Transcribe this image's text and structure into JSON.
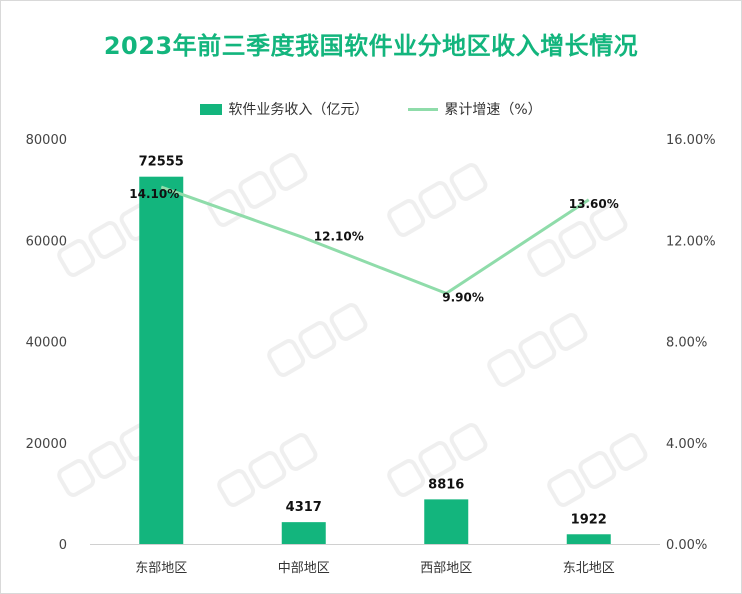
{
  "chart_data": {
    "type": "bar+line",
    "title": "2023年前三季度我国软件业分地区收入增长情况",
    "categories": [
      "东部地区",
      "中部地区",
      "西部地区",
      "东北地区"
    ],
    "series": [
      {
        "name": "软件业务收入（亿元）",
        "type": "bar",
        "axis": "left",
        "values": [
          72555,
          4317,
          8816,
          1922
        ],
        "labels": [
          "72555",
          "4317",
          "8816",
          "1922"
        ],
        "color": "#13b57d"
      },
      {
        "name": "累计增速（%）",
        "type": "line",
        "axis": "right",
        "values": [
          14.1,
          12.1,
          9.9,
          13.6
        ],
        "labels": [
          "14.10%",
          "12.10%",
          "9.90%",
          "13.60%"
        ],
        "color": "#8fdcaa"
      }
    ],
    "y_left": {
      "range": [
        0,
        80000
      ],
      "ticks": [
        "0",
        "20000",
        "40000",
        "60000",
        "80000"
      ]
    },
    "y_right": {
      "range": [
        0,
        16
      ],
      "ticks": [
        "0.00%",
        "4.00%",
        "8.00%",
        "12.00%",
        "16.00%"
      ]
    },
    "grid": false,
    "legend": "top"
  }
}
